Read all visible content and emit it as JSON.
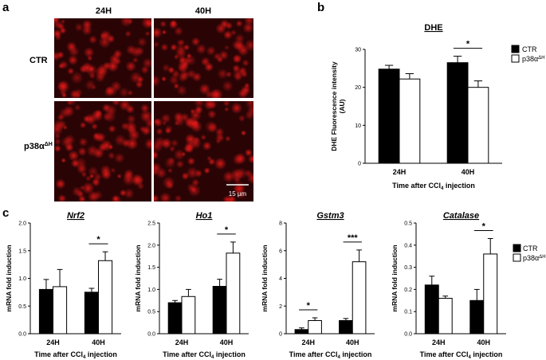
{
  "panel_letters": [
    "a",
    "b",
    "c"
  ],
  "micrographs": {
    "columns": [
      "24H",
      "40H"
    ],
    "rows": [
      {
        "label": "CTR",
        "sup": ""
      },
      {
        "label": "p38α",
        "sup": "ΔH"
      }
    ],
    "scale_bar": "15 µm",
    "colors": {
      "background": "#2a0405",
      "cell": "#e01818"
    }
  },
  "legend": {
    "items": [
      {
        "label": "CTR",
        "sup": "",
        "fill": "#000000"
      },
      {
        "label": "p38α",
        "sup": "ΔH",
        "fill": "#ffffff"
      }
    ]
  },
  "chart_data": [
    {
      "id": "DHE",
      "panel": "b",
      "type": "bar",
      "title": "DHE",
      "title_italic": false,
      "categories": [
        "24H",
        "40H"
      ],
      "series": [
        {
          "name": "CTR",
          "values": [
            24.8,
            26.5
          ],
          "errors": [
            1.0,
            1.7
          ]
        },
        {
          "name": "p38αΔH",
          "values": [
            22.2,
            20.0
          ],
          "errors": [
            1.4,
            1.7
          ]
        }
      ],
      "ylabel_lines": [
        "DHE Fluorescence intensity",
        "(AU)"
      ],
      "xlabel": "Time after CCl4 injection",
      "ylim": [
        0,
        30
      ],
      "yticks": [
        "0",
        "10",
        "20",
        "30"
      ],
      "annotations": [
        {
          "category": "40H",
          "text": "*"
        }
      ]
    },
    {
      "id": "Nrf2",
      "panel": "c",
      "type": "bar",
      "title": "Nrf2",
      "title_italic": true,
      "categories": [
        "24H",
        "40H"
      ],
      "series": [
        {
          "name": "CTR",
          "values": [
            0.8,
            0.75
          ],
          "errors": [
            0.18,
            0.07
          ]
        },
        {
          "name": "p38αΔH",
          "values": [
            0.85,
            1.32
          ],
          "errors": [
            0.31,
            0.16
          ]
        }
      ],
      "ylabel_lines": [
        "mRNA fold induction"
      ],
      "xlabel": "Time after CCl4 injection",
      "ylim": [
        0,
        2.0
      ],
      "yticks": [
        "0.0",
        "0.5",
        "1.0",
        "1.5",
        "2.0"
      ],
      "annotations": [
        {
          "category": "40H",
          "text": "*"
        }
      ]
    },
    {
      "id": "Ho1",
      "panel": "c",
      "type": "bar",
      "title": "Ho1",
      "title_italic": true,
      "categories": [
        "24H",
        "40H"
      ],
      "series": [
        {
          "name": "CTR",
          "values": [
            0.7,
            1.07
          ],
          "errors": [
            0.05,
            0.16
          ]
        },
        {
          "name": "p38αΔH",
          "values": [
            0.84,
            1.82
          ],
          "errors": [
            0.16,
            0.25
          ]
        }
      ],
      "ylabel_lines": [
        "mRNA fold induction"
      ],
      "xlabel": "Time after CCl4 injection",
      "ylim": [
        0,
        2.5
      ],
      "yticks": [
        "0.0",
        "0.5",
        "1.0",
        "1.5",
        "2.0",
        "2.5"
      ],
      "annotations": [
        {
          "category": "40H",
          "text": "*"
        }
      ]
    },
    {
      "id": "Gstm3",
      "panel": "c",
      "type": "bar",
      "title": "Gstm3",
      "title_italic": true,
      "categories": [
        "24H",
        "40H"
      ],
      "series": [
        {
          "name": "CTR",
          "values": [
            0.3,
            0.95
          ],
          "errors": [
            0.12,
            0.15
          ]
        },
        {
          "name": "p38αΔH",
          "values": [
            0.95,
            5.2
          ],
          "errors": [
            0.2,
            0.85
          ]
        }
      ],
      "ylabel_lines": [
        "mRNA fold induction"
      ],
      "xlabel": "Time after CCl4 injection",
      "ylim": [
        0,
        8
      ],
      "yticks": [
        "0",
        "2",
        "4",
        "6",
        "8"
      ],
      "annotations": [
        {
          "category": "24H",
          "text": "*"
        },
        {
          "category": "40H",
          "text": "***"
        }
      ]
    },
    {
      "id": "Catalase",
      "panel": "c",
      "type": "bar",
      "title": "Catalase",
      "title_italic": true,
      "categories": [
        "24H",
        "40H"
      ],
      "series": [
        {
          "name": "CTR",
          "values": [
            0.22,
            0.15
          ],
          "errors": [
            0.04,
            0.05
          ]
        },
        {
          "name": "p38αΔH",
          "values": [
            0.16,
            0.36
          ],
          "errors": [
            0.01,
            0.07
          ]
        }
      ],
      "ylabel_lines": [
        "mRNA fold induction"
      ],
      "xlabel": "Time after CCl4 injection",
      "ylim": [
        0,
        0.5
      ],
      "yticks": [
        "0.0",
        "0.1",
        "0.2",
        "0.3",
        "0.4",
        "0.5"
      ],
      "annotations": [
        {
          "category": "40H",
          "text": "*"
        }
      ]
    }
  ]
}
